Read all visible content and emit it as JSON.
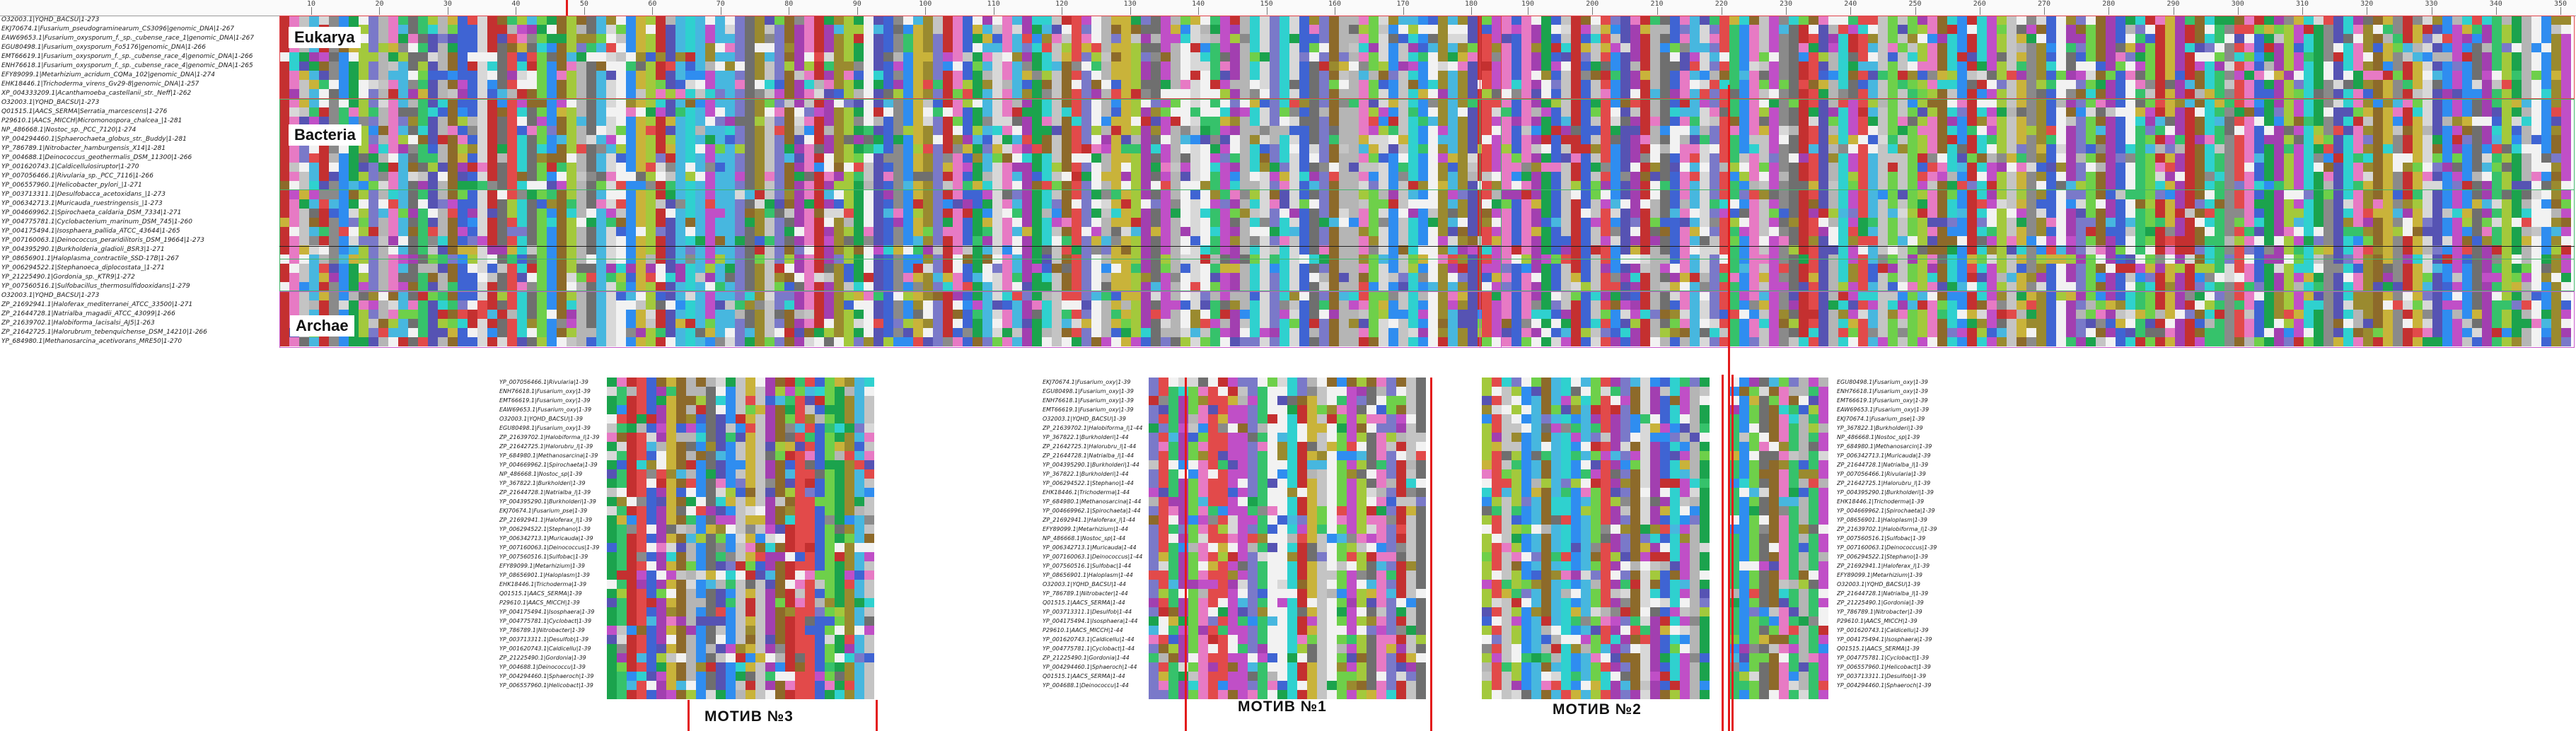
{
  "ruler": {
    "top_numbers": [
      "10",
      "20",
      "30",
      "40",
      "50",
      "60",
      "70",
      "80",
      "90",
      "100",
      "110",
      "120",
      "130",
      "140",
      "150",
      "160",
      "170",
      "180",
      "190",
      "200",
      "210",
      "220",
      "230",
      "240",
      "250",
      "260",
      "270",
      "280",
      "290",
      "300",
      "310",
      "320",
      "330",
      "340",
      "350"
    ]
  },
  "groups": [
    {
      "label": "Eukarya",
      "border": "#e0434a"
    },
    {
      "label": "Bacteria",
      "border": "#43b56b"
    },
    {
      "label": "Archae",
      "border": "#c659c9"
    }
  ],
  "main_sequence_names": [
    "O32003.1|YQHD_BACSU|1-273",
    "EKJ70674.1|Fusarium_pseudograminearum_CS3096|genomic_DNA|1-267",
    "EAW69653.1|Fusarium_oxysporum_f._sp._cubense_race_1|genomic_DNA|1-267",
    "EGU80498.1|Fusarium_oxysporum_Fo5176|genomic_DNA|1-266",
    "EMT66619.1|Fusarium_oxysporum_f._sp._cubense_race_4|genomic_DNA|1-266",
    "ENH76618.1|Fusarium_oxysporum_f._sp._cubense_race_4|genomic_DNA|1-265",
    "EFY89099.1|Metarhizium_acridum_CQMa_102|genomic_DNA|1-274",
    "EHK18446.1|Trichoderma_virens_Gv29-8|genomic_DNA|1-257",
    "XP_004333209.1|Acanthamoeba_castellanii_str._Neff|1-262",
    "O32003.1|YQHD_BACSU|1-273",
    "Q01515.1|AACS_SERMA|Serratia_marcescens|1-276",
    "P29610.1|AACS_MICCH|Micromonospora_chalcea_|1-281",
    "NP_486668.1|Nostoc_sp._PCC_7120|1-274",
    "YP_004294460.1|Sphaerochaeta_globus_str._Buddy|1-281",
    "YP_786789.1|Nitrobacter_hamburgensis_X14|1-281",
    "YP_004688.1|Deinococcus_geothermalis_DSM_11300|1-266",
    "YP_001620743.1|Caldicellulosiruptor|1-270",
    "YP_007056466.1|Rivularia_sp._PCC_7116|1-266",
    "YP_006557960.1|Helicobacter_pylori_|1-271",
    "YP_003713311.1|Desulfobacca_acetoxidans_|1-273",
    "YP_006342713.1|Muricauda_ruestringensis_|1-273",
    "YP_004669962.1|Spirochaeta_caldaria_DSM_7334|1-271",
    "YP_004775781.1|Cyclobacterium_marinum_DSM_745|1-260",
    "YP_004175494.1|Isosphaera_pallida_ATCC_43644|1-265",
    "YP_007160063.1|Deinococcus_peraridilitoris_DSM_19664|1-273",
    "YP_004395290.1|Burkholderia_gladioli_BSR3|1-271",
    "YP_08656901.1|Haloplasma_contractile_SSD-17B|1-267",
    "YP_006294522.1|Stephanoeca_diplocostata_|1-271",
    "YP_21225490.1|Gordonia_sp._KTR9|1-272",
    "YP_007560516.1|Sulfobacillus_thermosulfidooxidans|1-279",
    "O32003.1|YQHD_BACSU|1-273",
    "ZP_21692941.1|Haloferax_mediterranei_ATCC_33500|1-271",
    "ZP_21644728.1|Natrialba_magadii_ATCC_43099|1-266",
    "ZP_21639702.1|Halobiforma_lacisalsi_AJ5|1-263",
    "ZP_21642725.1|Halorubrum_tebenquichense_DSM_14210|1-266",
    "YP_684980.1|Methanosarcina_acetivorans_MRE50|1-270"
  ],
  "lower_sequence_names_a": [
    "YP_007056466.1|Rivularia|1-39",
    "ENH76618.1|Fusarium_oxy|1-39",
    "EMT66619.1|Fusarium_oxy|1-39",
    "EAW69653.1|Fusarium_oxy|1-39",
    "O32003.1|YQHD_BACSU|1-39",
    "EGU80498.1|Fusarium_oxy|1-39",
    "ZP_21639702.1|Halobiforma_l|1-39",
    "ZP_21642725.1|Halorubru_l|1-39",
    "YP_684980.1|Methanosarcina|1-39",
    "YP_004669962.1|Spirochaeta|1-39",
    "NP_486668.1|Nostoc_sp|1-39",
    "YP_367822.1|Burkholderi|1-39",
    "ZP_21644728.1|Natrialba_l|1-39",
    "YP_004395290.1|Burkholderi|1-39",
    "EKJ70674.1|Fusarium_pse|1-39",
    "ZP_21692941.1|Haloferax_l|1-39",
    "YP_006294522.1|Stephano|1-39",
    "YP_006342713.1|Muricauda|1-39",
    "YP_007160063.1|Deinococcus|1-39",
    "YP_007560516.1|Sulfobac|1-39",
    "EFY89099.1|Metarhizium|1-39",
    "YP_08656901.1|Haloplasm|1-39",
    "EHK18446.1|Trichoderma|1-39",
    "Q01515.1|AACS_SERMA|1-39",
    "P29610.1|AACS_MICCH|1-39",
    "YP_004175494.1|Isosphaera|1-39",
    "YP_004775781.1|Cyclobact|1-39",
    "YP_786789.1|Nitrobacter|1-39",
    "YP_003713311.1|Desulfob|1-39",
    "YP_001620743.1|Caldicellu|1-39",
    "ZP_21225490.1|Gordonia|1-39",
    "YP_004688.1|Deinococcu|1-39",
    "YP_004294460.1|Sphaeroch|1-39",
    "YP_006557960.1|Helicobact|1-39"
  ],
  "lower_sequence_names_b": [
    "EKJ70674.1|Fusarium_oxy|1-39",
    "EGU80498.1|Fusarium_oxy|1-39",
    "ENH76618.1|Fusarium_oxy|1-39",
    "EMT66619.1|Fusarium_oxy|1-39",
    "O32003.1|YQHD_BACSU|1-39",
    "ZP_21639702.1|Halobiforma_l|1-44",
    "YP_367822.1|Burkholderi|1-44",
    "ZP_21642725.1|Halorubru_l|1-44",
    "ZP_21644728.1|Natrialba_l|1-44",
    "YP_004395290.1|Burkholderi|1-44",
    "YP_367822.1|Burkholderi|1-44",
    "YP_006294522.1|Stephano|1-44",
    "EHK18446.1|Trichoderma|1-44",
    "YP_684980.1|Methanosarcina|1-44",
    "YP_004669962.1|Spirochaeta|1-44",
    "ZP_21692941.1|Haloferax_l|1-44",
    "EFY89099.1|Metarhizium|1-44",
    "NP_486668.1|Nostoc_sp|1-44",
    "YP_006342713.1|Muricauda|1-44",
    "YP_007160063.1|Deinococcus|1-44",
    "YP_007560516.1|Sulfobac|1-44",
    "YP_08656901.1|Haloplasm|1-44",
    "O32003.1|YQHD_BACSU|1-44",
    "YP_786789.1|Nitrobacter|1-44",
    "Q01515.1|AACS_SERMA|1-44",
    "YP_003713311.1|Desulfob|1-44",
    "YP_004175494.1|Isosphaera|1-44",
    "P29610.1|AACS_MICCH|1-44",
    "YP_001620743.1|Caldicellu|1-44",
    "YP_004775781.1|Cyclobact|1-44",
    "ZP_21225490.1|Gordonia|1-44",
    "YP_004294460.1|Sphaeroch|1-44",
    "Q01515.1|AACS_SERMA|1-44",
    "YP_004688.1|Deinococcu|1-44"
  ],
  "lower_sequence_names_c": [
    "EGU80498.1|Fusarium_oxy|1-39",
    "ENH76618.1|Fusarium_oxy|1-39",
    "EMT66619.1|Fusarium_oxy|1-39",
    "EAW69653.1|Fusarium_oxy|1-39",
    "EKJ70674.1|Fusarium_pse|1-39",
    "YP_367822.1|Burkholderi|1-39",
    "NP_486668.1|Nostoc_sp|1-39",
    "YP_684980.1|Methanosarcin|1-39",
    "YP_006342713.1|Muricauda|1-39",
    "ZP_21644728.1|Natrialba_l|1-39",
    "YP_007056466.1|Rivularia|1-39",
    "ZP_21642725.1|Halorubru_l|1-39",
    "YP_004395290.1|Burkholderi|1-39",
    "EHK18446.1|Trichoderma|1-39",
    "YP_004669962.1|Spirochaeta|1-39",
    "YP_08656901.1|Haloplasm|1-39",
    "ZP_21639702.1|Halobiforma_l|1-39",
    "YP_007560516.1|Sulfobac|1-39",
    "YP_007160063.1|Deinococcus|1-39",
    "YP_006294522.1|Stephano|1-39",
    "ZP_21692941.1|Haloferax_l|1-39",
    "EFY89099.1|Metarhizium|1-39",
    "O32003.1|YQHD_BACSU|1-39",
    "ZP_21644728.1|Natrialba_l|1-39",
    "ZP_21225490.1|Gordonia|1-39",
    "YP_786789.1|Nitrobacter|1-39",
    "P29610.1|AACS_MICCH|1-39",
    "YP_001620743.1|Caldicellu|1-39",
    "YP_004175494.1|Isosphaera|1-39",
    "Q01515.1|AACS_SERMA|1-39",
    "YP_004775781.1|Cyclobact|1-39",
    "YP_006557960.1|Helicobact|1-39",
    "YP_003713311.1|Desulfob|1-39",
    "YP_004294460.1|Sphaeroch|1-39"
  ],
  "motifs": [
    "МОТИВ №3",
    "МОТИВ №1",
    "МОТИВ №2"
  ],
  "palette": [
    "#d8d8d8",
    "#c4c4c4",
    "#b5b5b5",
    "#8a8a8a",
    "#6f6f6f",
    "#7a79c9",
    "#5653b3",
    "#3f64d3",
    "#2f8df0",
    "#47b7df",
    "#2fd1cf",
    "#36c26b",
    "#1ba34d",
    "#6ed04a",
    "#a3c93c",
    "#c9b33a",
    "#9a8a2f",
    "#8d6a2a",
    "#c04fc7",
    "#a23fb0",
    "#e24a4a",
    "#c43030",
    "#e77ac4",
    "#f2f2f2"
  ]
}
